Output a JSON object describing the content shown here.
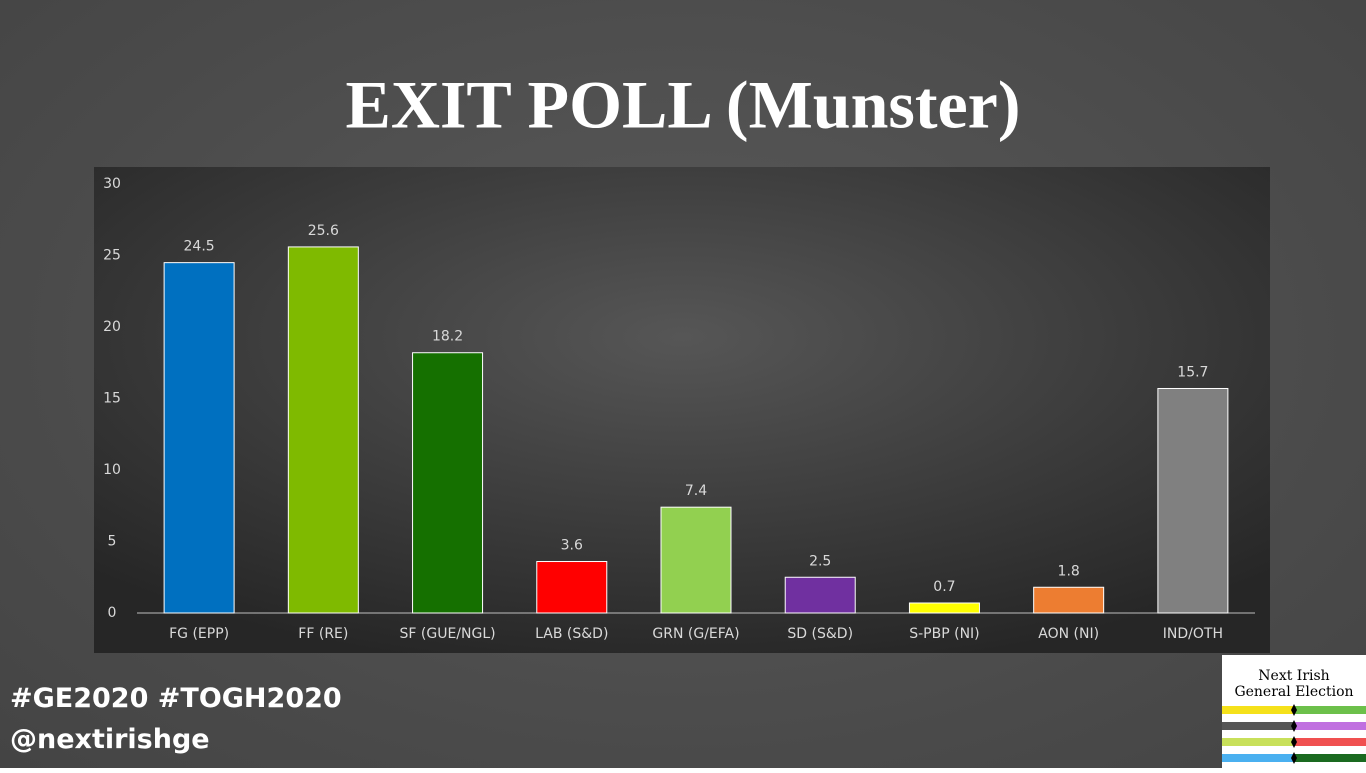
{
  "chart_data": {
    "type": "bar",
    "title": "EXIT POLL (Munster)",
    "categories": [
      "FG (EPP)",
      "FF (RE)",
      "SF (GUE/NGL)",
      "LAB (S&D)",
      "GRN (G/EFA)",
      "SD (S&D)",
      "S-PBP (NI)",
      "AON (NI)",
      "IND/OTH"
    ],
    "values": [
      24.5,
      25.6,
      18.2,
      3.6,
      7.4,
      2.5,
      0.7,
      1.8,
      15.7
    ],
    "colors": [
      "#0070c0",
      "#7fba00",
      "#157000",
      "#ff0000",
      "#92d050",
      "#7030a0",
      "#ffff00",
      "#ed7d31",
      "#808080"
    ],
    "ylim": [
      0,
      30
    ],
    "yticks": [
      0,
      5,
      10,
      15,
      20,
      25,
      30
    ],
    "grid": false
  },
  "footer": {
    "hashtags": "#GE2020 #TOGH2020",
    "handle": "@nextirishge"
  },
  "logo": {
    "line1": "Next Irish",
    "line2": "General Election"
  }
}
